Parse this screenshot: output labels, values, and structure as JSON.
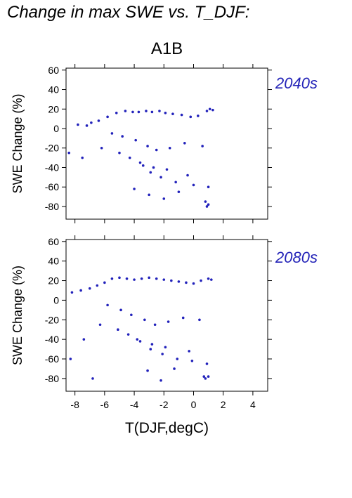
{
  "figure_title": "Change in max SWE vs. T_DJF:",
  "scenario": "A1B",
  "colors": {
    "points": "#2222bb",
    "panel_label": "#2424b8",
    "axis": "#000000"
  },
  "chart_data": [
    {
      "type": "scatter",
      "panel_label": "2040s",
      "xlabel": "T(DJF,degC)",
      "ylabel": "SWE Change (%)",
      "xlim": [
        -8.6,
        5.0
      ],
      "ylim": [
        -93,
        62
      ],
      "xticks": [
        -8,
        -6,
        -4,
        -2,
        0,
        2,
        4
      ],
      "yticks": [
        60,
        40,
        20,
        0,
        -20,
        -40,
        -60,
        -80
      ],
      "series": [
        {
          "x": [
            -7.8,
            -7.2,
            -6.9,
            -6.4,
            -5.8,
            -5.2,
            -4.6,
            -4.1,
            -3.7,
            -3.2,
            -2.8,
            -2.3,
            -1.9,
            -1.4,
            -0.8,
            -0.2,
            0.3,
            0.9,
            1.1,
            1.3,
            -5.5,
            -4.8,
            -3.9,
            -3.1,
            -2.5,
            -1.6,
            -0.6,
            0.6,
            1.0,
            -4.3,
            -3.4,
            -2.9,
            -2.2,
            -1.2,
            -6.2,
            -5.0,
            -3.6,
            -2.7,
            -1.8,
            -0.4,
            0.8,
            -7.5,
            -8.4,
            -4.0,
            -3.0,
            -2.0,
            -1.0,
            0.0,
            0.9,
            1.0
          ],
          "y": [
            4,
            3,
            6,
            8,
            12,
            16,
            18,
            17,
            17,
            18,
            17,
            18,
            16,
            15,
            14,
            12,
            13,
            18,
            20,
            19,
            -5,
            -8,
            -12,
            -18,
            -22,
            -20,
            -15,
            -18,
            -60,
            -30,
            -38,
            -45,
            -50,
            -55,
            -20,
            -25,
            -35,
            -40,
            -42,
            -48,
            -75,
            -30,
            -25,
            -62,
            -68,
            -72,
            -65,
            -58,
            -80,
            -78
          ]
        }
      ]
    },
    {
      "type": "scatter",
      "panel_label": "2080s",
      "xlabel": "T(DJF,degC)",
      "ylabel": "SWE Change (%)",
      "xlim": [
        -8.6,
        5.0
      ],
      "ylim": [
        -93,
        62
      ],
      "xticks": [
        -8,
        -6,
        -4,
        -2,
        0,
        2,
        4
      ],
      "yticks": [
        60,
        40,
        20,
        0,
        -20,
        -40,
        -60,
        -80
      ],
      "series": [
        {
          "x": [
            -8.2,
            -7.6,
            -7.0,
            -6.5,
            -6.0,
            -5.5,
            -5.0,
            -4.5,
            -4.0,
            -3.5,
            -3.0,
            -2.5,
            -2.0,
            -1.5,
            -1.0,
            -0.5,
            0.0,
            0.5,
            1.0,
            1.2,
            -5.8,
            -4.9,
            -4.2,
            -3.3,
            -2.6,
            -1.7,
            -0.7,
            0.4,
            0.9,
            -4.4,
            -3.6,
            -2.9,
            -2.1,
            -1.1,
            -6.3,
            -5.1,
            -3.8,
            -2.8,
            -1.9,
            -0.3,
            0.7,
            -7.4,
            -8.3,
            -6.8,
            -3.1,
            -2.2,
            -1.3,
            -0.1,
            0.8,
            1.0
          ],
          "y": [
            8,
            10,
            12,
            15,
            18,
            22,
            23,
            22,
            21,
            22,
            23,
            22,
            21,
            20,
            19,
            18,
            17,
            20,
            22,
            21,
            -5,
            -10,
            -15,
            -20,
            -25,
            -22,
            -18,
            -20,
            -65,
            -35,
            -42,
            -50,
            -55,
            -60,
            -25,
            -30,
            -40,
            -45,
            -48,
            -52,
            -78,
            -40,
            -60,
            -80,
            -72,
            -82,
            -70,
            -62,
            -80,
            -78
          ]
        }
      ]
    }
  ]
}
